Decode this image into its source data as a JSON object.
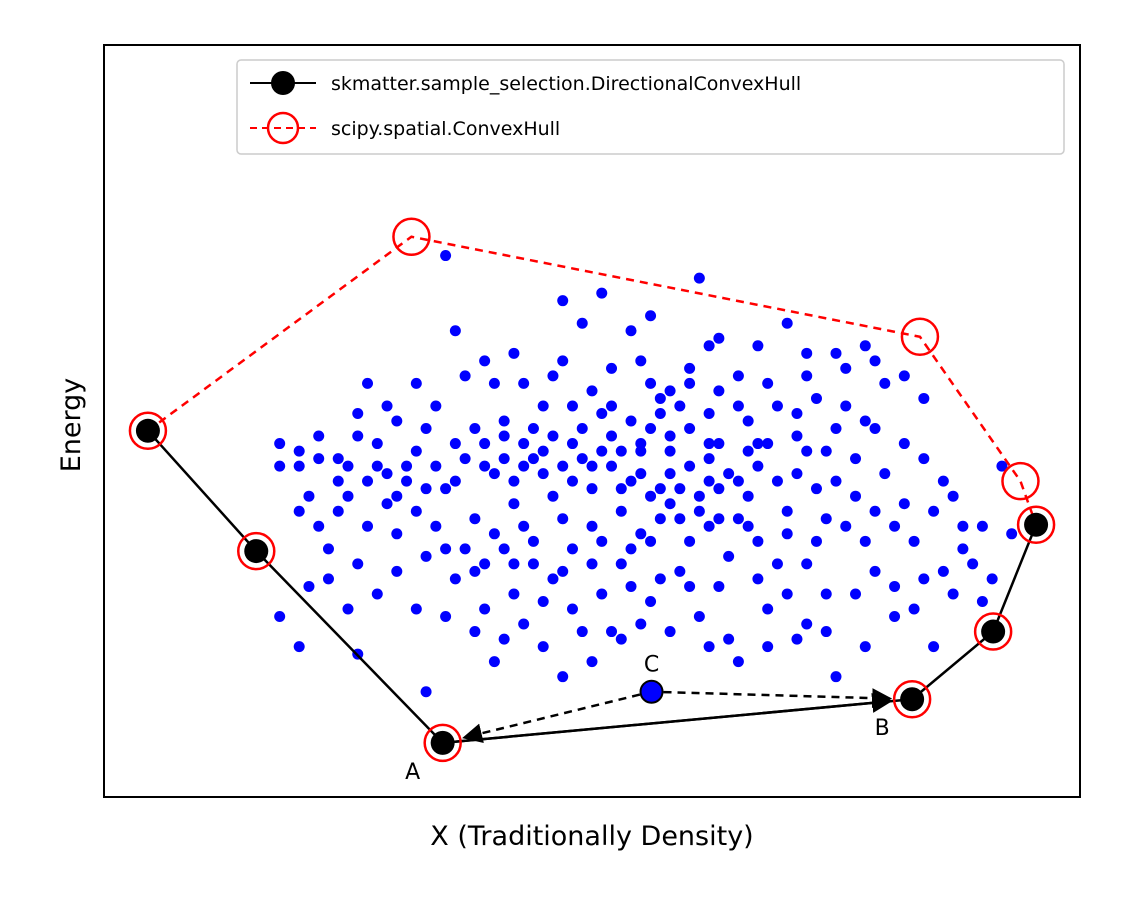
{
  "chart_data": {
    "type": "scatter",
    "title": "",
    "xlabel": "X (Traditionally Density)",
    "ylabel": "Energy",
    "xlim": [
      0,
      1
    ],
    "ylim": [
      0,
      1
    ],
    "xticks_visible": false,
    "yticks_visible": false,
    "grid": false,
    "legend": {
      "placement": "top-right",
      "entries": [
        {
          "label": "skmatter.sample_selection.DirectionalConvexHull",
          "color": "#000000",
          "linestyle": "solid",
          "marker": "filled-circle"
        },
        {
          "label": "scipy.spatial.ConvexHull",
          "color": "#ff0000",
          "linestyle": "dashed",
          "marker": "open-circle"
        }
      ]
    },
    "colors": {
      "samples": "#0000ff",
      "directional_hull": "#000000",
      "convex_hull": "#ff0000",
      "highlight": "#0000ff"
    },
    "series": [
      {
        "name": "skmatter.sample_selection.DirectionalConvexHull",
        "points": [
          [
            0.045,
            0.487
          ],
          [
            0.156,
            0.327
          ],
          [
            0.347,
            0.072
          ],
          [
            0.828,
            0.13
          ],
          [
            0.911,
            0.22
          ],
          [
            0.955,
            0.362
          ]
        ]
      },
      {
        "name": "scipy.spatial.ConvexHull",
        "points": [
          [
            0.045,
            0.487
          ],
          [
            0.315,
            0.745
          ],
          [
            0.836,
            0.612
          ],
          [
            0.939,
            0.42
          ],
          [
            0.955,
            0.362
          ],
          [
            0.911,
            0.22
          ],
          [
            0.828,
            0.13
          ],
          [
            0.347,
            0.072
          ],
          [
            0.156,
            0.327
          ]
        ]
      },
      {
        "name": "samples",
        "points": [
          [
            0.35,
            0.72
          ],
          [
            0.47,
            0.66
          ],
          [
            0.51,
            0.67
          ],
          [
            0.36,
            0.62
          ],
          [
            0.6,
            0.57
          ],
          [
            0.55,
            0.58
          ],
          [
            0.62,
            0.6
          ],
          [
            0.7,
            0.63
          ],
          [
            0.75,
            0.59
          ],
          [
            0.78,
            0.6
          ],
          [
            0.5,
            0.54
          ],
          [
            0.52,
            0.57
          ],
          [
            0.58,
            0.54
          ],
          [
            0.65,
            0.56
          ],
          [
            0.72,
            0.56
          ],
          [
            0.8,
            0.55
          ],
          [
            0.66,
            0.5
          ],
          [
            0.69,
            0.52
          ],
          [
            0.45,
            0.52
          ],
          [
            0.41,
            0.5
          ],
          [
            0.38,
            0.49
          ],
          [
            0.34,
            0.52
          ],
          [
            0.28,
            0.47
          ],
          [
            0.26,
            0.48
          ],
          [
            0.29,
            0.43
          ],
          [
            0.32,
            0.46
          ],
          [
            0.24,
            0.42
          ],
          [
            0.22,
            0.48
          ],
          [
            0.2,
            0.44
          ],
          [
            0.21,
            0.4
          ],
          [
            0.25,
            0.4
          ],
          [
            0.3,
            0.4
          ],
          [
            0.35,
            0.41
          ],
          [
            0.4,
            0.43
          ],
          [
            0.44,
            0.45
          ],
          [
            0.48,
            0.47
          ],
          [
            0.52,
            0.48
          ],
          [
            0.56,
            0.49
          ],
          [
            0.6,
            0.49
          ],
          [
            0.63,
            0.47
          ],
          [
            0.67,
            0.47
          ],
          [
            0.71,
            0.48
          ],
          [
            0.74,
            0.46
          ],
          [
            0.77,
            0.45
          ],
          [
            0.79,
            0.49
          ],
          [
            0.8,
            0.43
          ],
          [
            0.82,
            0.39
          ],
          [
            0.85,
            0.38
          ],
          [
            0.87,
            0.4
          ],
          [
            0.83,
            0.34
          ],
          [
            0.78,
            0.34
          ],
          [
            0.74,
            0.37
          ],
          [
            0.7,
            0.38
          ],
          [
            0.66,
            0.4
          ],
          [
            0.62,
            0.42
          ],
          [
            0.58,
            0.43
          ],
          [
            0.54,
            0.42
          ],
          [
            0.5,
            0.41
          ],
          [
            0.46,
            0.4
          ],
          [
            0.42,
            0.39
          ],
          [
            0.38,
            0.37
          ],
          [
            0.34,
            0.36
          ],
          [
            0.3,
            0.35
          ],
          [
            0.27,
            0.36
          ],
          [
            0.23,
            0.33
          ],
          [
            0.21,
            0.28
          ],
          [
            0.18,
            0.24
          ],
          [
            0.2,
            0.2
          ],
          [
            0.26,
            0.19
          ],
          [
            0.33,
            0.14
          ],
          [
            0.4,
            0.18
          ],
          [
            0.43,
            0.23
          ],
          [
            0.47,
            0.16
          ],
          [
            0.5,
            0.18
          ],
          [
            0.53,
            0.21
          ],
          [
            0.56,
            0.26
          ],
          [
            0.59,
            0.3
          ],
          [
            0.61,
            0.24
          ],
          [
            0.64,
            0.21
          ],
          [
            0.68,
            0.25
          ],
          [
            0.72,
            0.23
          ],
          [
            0.75,
            0.16
          ],
          [
            0.78,
            0.2
          ],
          [
            0.81,
            0.24
          ],
          [
            0.84,
            0.29
          ],
          [
            0.86,
            0.3
          ],
          [
            0.88,
            0.33
          ],
          [
            0.91,
            0.29
          ],
          [
            0.42,
            0.31
          ],
          [
            0.46,
            0.29
          ],
          [
            0.48,
            0.33
          ],
          [
            0.44,
            0.34
          ],
          [
            0.5,
            0.36
          ],
          [
            0.54,
            0.33
          ],
          [
            0.57,
            0.37
          ],
          [
            0.6,
            0.34
          ],
          [
            0.64,
            0.32
          ],
          [
            0.66,
            0.36
          ],
          [
            0.69,
            0.31
          ],
          [
            0.72,
            0.31
          ],
          [
            0.74,
            0.27
          ],
          [
            0.7,
            0.27
          ],
          [
            0.67,
            0.29
          ],
          [
            0.63,
            0.28
          ],
          [
            0.6,
            0.28
          ],
          [
            0.57,
            0.29
          ],
          [
            0.54,
            0.28
          ],
          [
            0.51,
            0.27
          ],
          [
            0.48,
            0.25
          ],
          [
            0.45,
            0.26
          ],
          [
            0.42,
            0.27
          ],
          [
            0.39,
            0.25
          ],
          [
            0.52,
            0.44
          ],
          [
            0.55,
            0.46
          ],
          [
            0.58,
            0.46
          ],
          [
            0.6,
            0.44
          ],
          [
            0.62,
            0.45
          ],
          [
            0.64,
            0.43
          ],
          [
            0.53,
            0.38
          ],
          [
            0.56,
            0.4
          ],
          [
            0.58,
            0.39
          ],
          [
            0.61,
            0.38
          ],
          [
            0.63,
            0.37
          ],
          [
            0.55,
            0.35
          ],
          [
            0.51,
            0.34
          ],
          [
            0.47,
            0.37
          ],
          [
            0.43,
            0.36
          ],
          [
            0.4,
            0.35
          ],
          [
            0.37,
            0.33
          ],
          [
            0.33,
            0.32
          ],
          [
            0.3,
            0.3
          ],
          [
            0.26,
            0.31
          ],
          [
            0.36,
            0.29
          ],
          [
            0.39,
            0.31
          ],
          [
            0.42,
            0.42
          ],
          [
            0.45,
            0.43
          ],
          [
            0.48,
            0.42
          ],
          [
            0.5,
            0.44
          ],
          [
            0.53,
            0.41
          ],
          [
            0.55,
            0.43
          ],
          [
            0.57,
            0.41
          ],
          [
            0.59,
            0.41
          ],
          [
            0.61,
            0.4
          ],
          [
            0.63,
            0.41
          ],
          [
            0.65,
            0.42
          ],
          [
            0.67,
            0.44
          ],
          [
            0.69,
            0.42
          ],
          [
            0.71,
            0.43
          ],
          [
            0.73,
            0.41
          ],
          [
            0.75,
            0.42
          ],
          [
            0.77,
            0.4
          ],
          [
            0.79,
            0.38
          ],
          [
            0.81,
            0.36
          ],
          [
            0.76,
            0.36
          ],
          [
            0.73,
            0.34
          ],
          [
            0.7,
            0.35
          ],
          [
            0.67,
            0.34
          ],
          [
            0.65,
            0.37
          ],
          [
            0.62,
            0.36
          ],
          [
            0.59,
            0.37
          ],
          [
            0.56,
            0.34
          ],
          [
            0.53,
            0.31
          ],
          [
            0.5,
            0.31
          ],
          [
            0.47,
            0.3
          ],
          [
            0.44,
            0.31
          ],
          [
            0.41,
            0.33
          ],
          [
            0.38,
            0.3
          ],
          [
            0.35,
            0.33
          ],
          [
            0.32,
            0.38
          ],
          [
            0.29,
            0.39
          ],
          [
            0.27,
            0.42
          ],
          [
            0.24,
            0.45
          ],
          [
            0.31,
            0.44
          ],
          [
            0.34,
            0.44
          ],
          [
            0.37,
            0.45
          ],
          [
            0.39,
            0.47
          ],
          [
            0.43,
            0.47
          ],
          [
            0.46,
            0.48
          ],
          [
            0.49,
            0.49
          ],
          [
            0.51,
            0.51
          ],
          [
            0.54,
            0.5
          ],
          [
            0.57,
            0.51
          ],
          [
            0.59,
            0.52
          ],
          [
            0.62,
            0.51
          ],
          [
            0.65,
            0.52
          ],
          [
            0.68,
            0.55
          ],
          [
            0.71,
            0.51
          ],
          [
            0.73,
            0.53
          ],
          [
            0.76,
            0.52
          ],
          [
            0.78,
            0.5
          ],
          [
            0.82,
            0.47
          ],
          [
            0.84,
            0.45
          ],
          [
            0.86,
            0.42
          ],
          [
            0.88,
            0.36
          ],
          [
            0.9,
            0.26
          ],
          [
            0.93,
            0.35
          ],
          [
            0.92,
            0.44
          ],
          [
            0.49,
            0.63
          ],
          [
            0.47,
            0.58
          ],
          [
            0.43,
            0.55
          ],
          [
            0.4,
            0.55
          ],
          [
            0.37,
            0.56
          ],
          [
            0.32,
            0.55
          ],
          [
            0.29,
            0.52
          ],
          [
            0.27,
            0.55
          ],
          [
            0.42,
            0.59
          ],
          [
            0.39,
            0.58
          ],
          [
            0.54,
            0.62
          ],
          [
            0.56,
            0.64
          ],
          [
            0.63,
            0.61
          ],
          [
            0.67,
            0.6
          ],
          [
            0.72,
            0.59
          ],
          [
            0.76,
            0.57
          ],
          [
            0.79,
            0.58
          ],
          [
            0.82,
            0.56
          ],
          [
            0.84,
            0.53
          ],
          [
            0.75,
            0.49
          ],
          [
            0.72,
            0.46
          ],
          [
            0.68,
            0.47
          ],
          [
            0.66,
            0.46
          ],
          [
            0.62,
            0.47
          ],
          [
            0.58,
            0.48
          ],
          [
            0.55,
            0.47
          ],
          [
            0.53,
            0.46
          ],
          [
            0.51,
            0.46
          ],
          [
            0.49,
            0.45
          ],
          [
            0.47,
            0.44
          ],
          [
            0.45,
            0.46
          ],
          [
            0.43,
            0.44
          ],
          [
            0.41,
            0.45
          ],
          [
            0.39,
            0.44
          ],
          [
            0.36,
            0.42
          ],
          [
            0.33,
            0.41
          ],
          [
            0.31,
            0.42
          ],
          [
            0.28,
            0.44
          ],
          [
            0.25,
            0.44
          ],
          [
            0.22,
            0.45
          ],
          [
            0.2,
            0.46
          ],
          [
            0.18,
            0.47
          ],
          [
            0.18,
            0.44
          ],
          [
            0.2,
            0.38
          ],
          [
            0.22,
            0.36
          ],
          [
            0.24,
            0.38
          ],
          [
            0.23,
            0.29
          ],
          [
            0.25,
            0.25
          ],
          [
            0.28,
            0.27
          ],
          [
            0.32,
            0.25
          ],
          [
            0.35,
            0.24
          ],
          [
            0.38,
            0.22
          ],
          [
            0.41,
            0.21
          ],
          [
            0.45,
            0.2
          ],
          [
            0.49,
            0.22
          ],
          [
            0.52,
            0.22
          ],
          [
            0.55,
            0.23
          ],
          [
            0.58,
            0.22
          ],
          [
            0.62,
            0.2
          ],
          [
            0.65,
            0.18
          ],
          [
            0.68,
            0.2
          ],
          [
            0.71,
            0.21
          ],
          [
            0.74,
            0.22
          ],
          [
            0.77,
            0.27
          ],
          [
            0.79,
            0.3
          ],
          [
            0.81,
            0.28
          ],
          [
            0.83,
            0.25
          ],
          [
            0.85,
            0.2
          ],
          [
            0.87,
            0.27
          ],
          [
            0.89,
            0.31
          ],
          [
            0.9,
            0.36
          ],
          [
            0.61,
            0.69
          ],
          [
            0.57,
            0.53
          ],
          [
            0.63,
            0.54
          ],
          [
            0.6,
            0.55
          ],
          [
            0.56,
            0.55
          ],
          [
            0.52,
            0.52
          ],
          [
            0.48,
            0.52
          ],
          [
            0.46,
            0.56
          ],
          [
            0.44,
            0.49
          ],
          [
            0.41,
            0.48
          ],
          [
            0.36,
            0.47
          ],
          [
            0.33,
            0.49
          ],
          [
            0.3,
            0.5
          ],
          [
            0.26,
            0.51
          ]
        ]
      },
      {
        "name": "C",
        "points": [
          [
            0.561,
            0.14
          ]
        ]
      }
    ],
    "arrows": [
      {
        "from": "A",
        "to": "B",
        "style": "solid",
        "color": "#000000"
      },
      {
        "from": "C",
        "to": "A",
        "style": "dashed",
        "color": "#000000"
      },
      {
        "from": "C",
        "to": "B",
        "style": "dashed",
        "color": "#000000"
      }
    ],
    "annotations": [
      {
        "text": "A",
        "anchor": [
          0.347,
          0.072
        ],
        "position": "below-left"
      },
      {
        "text": "B",
        "anchor": [
          0.828,
          0.13
        ],
        "position": "below-left"
      },
      {
        "text": "C",
        "anchor": [
          0.561,
          0.14
        ],
        "position": "above"
      }
    ]
  }
}
